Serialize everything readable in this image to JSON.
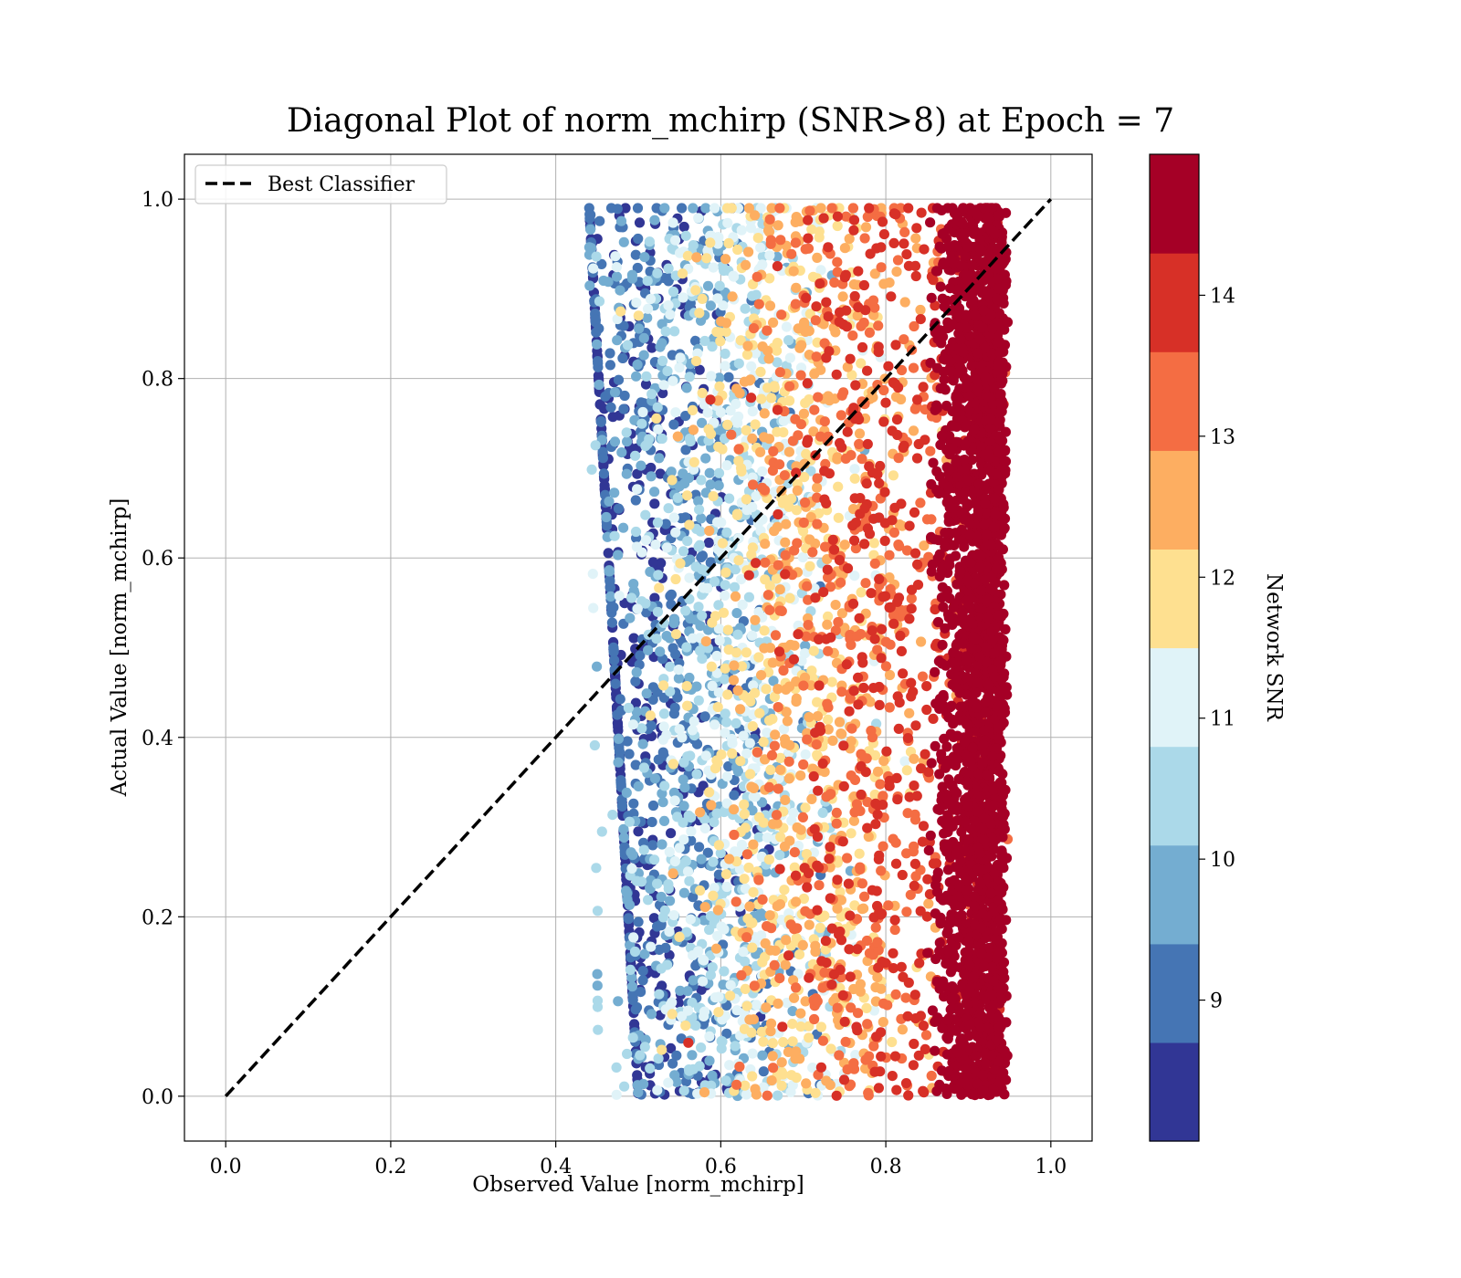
{
  "chart_data": {
    "type": "scatter",
    "title": "Diagonal Plot of norm_mchirp (SNR>8) at Epoch = 7",
    "xlabel": "Observed Value [norm_mchirp]",
    "ylabel": "Actual Value [norm_mchirp]",
    "xlim": [
      -0.05,
      1.05
    ],
    "ylim": [
      -0.05,
      1.05
    ],
    "x_ticks": [
      "0.0",
      "0.2",
      "0.4",
      "0.6",
      "0.8",
      "1.0"
    ],
    "y_ticks": [
      "0.0",
      "0.2",
      "0.4",
      "0.6",
      "0.8",
      "1.0"
    ],
    "grid": true,
    "legend": {
      "placement": "top-left",
      "entries": [
        "Best Classifier"
      ]
    },
    "reference_line": {
      "name": "Best Classifier",
      "style": "dashed",
      "color": "#000000",
      "from": [
        0,
        0
      ],
      "to": [
        1,
        1
      ]
    },
    "scatter_distribution": {
      "x_range": [
        0.43,
        0.95
      ],
      "y_range": [
        0.0,
        0.99
      ],
      "relation": "higher Network SNR points lie at higher observed values",
      "marker_color_by": "Network SNR"
    },
    "colorbar": {
      "label": "Network SNR",
      "range": [
        8,
        15
      ],
      "ticks": [
        "9",
        "10",
        "11",
        "12",
        "13",
        "14"
      ],
      "bins": [
        {
          "from": 8.0,
          "to": 8.7,
          "color": "#313695"
        },
        {
          "from": 8.7,
          "to": 9.4,
          "color": "#4575b4"
        },
        {
          "from": 9.4,
          "to": 10.1,
          "color": "#74add1"
        },
        {
          "from": 10.1,
          "to": 10.8,
          "color": "#abd9e9"
        },
        {
          "from": 10.8,
          "to": 11.5,
          "color": "#e0f3f8"
        },
        {
          "from": 11.5,
          "to": 12.2,
          "color": "#fee090"
        },
        {
          "from": 12.2,
          "to": 12.9,
          "color": "#fdae61"
        },
        {
          "from": 12.9,
          "to": 13.6,
          "color": "#f46d43"
        },
        {
          "from": 13.6,
          "to": 14.3,
          "color": "#d73027"
        },
        {
          "from": 14.3,
          "to": 15.0,
          "color": "#a50026"
        }
      ]
    }
  }
}
